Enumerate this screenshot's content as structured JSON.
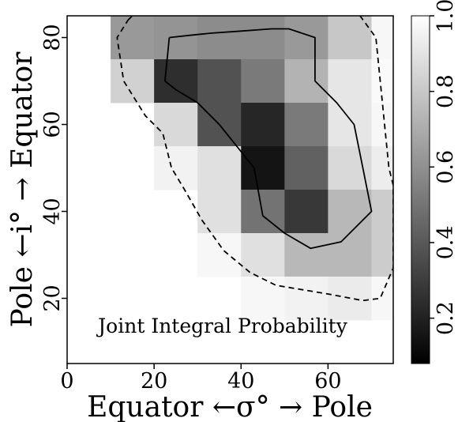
{
  "chart_data": {
    "type": "heatmap",
    "annotation": "Joint Integral Probability",
    "xlabel": "Equator ←σ° → Pole",
    "ylabel": "Pole ←i° → Equator",
    "xlim": [
      0,
      75
    ],
    "ylim": [
      5,
      85
    ],
    "x_ticks": [
      0,
      20,
      40,
      60
    ],
    "y_ticks": [
      20,
      40,
      60,
      80
    ],
    "colormap": "gray",
    "colorbar": {
      "range": [
        0.08,
        1.0
      ],
      "ticks": [
        0.2,
        0.4,
        0.6,
        0.8,
        1.0
      ],
      "tick_labels": [
        "0.2",
        "0.4",
        "0.6",
        "0.8",
        "1.0"
      ]
    },
    "cell_size": [
      10,
      10
    ],
    "cells": [
      {
        "x": 15,
        "y": 80,
        "v": 0.6
      },
      {
        "x": 25,
        "y": 80,
        "v": 0.58
      },
      {
        "x": 35,
        "y": 80,
        "v": 0.55
      },
      {
        "x": 45,
        "y": 80,
        "v": 0.55
      },
      {
        "x": 55,
        "y": 80,
        "v": 0.6
      },
      {
        "x": 65,
        "y": 80,
        "v": 0.78
      },
      {
        "x": 75,
        "y": 80,
        "v": 0.97
      },
      {
        "x": 15,
        "y": 70,
        "v": 0.82
      },
      {
        "x": 25,
        "y": 70,
        "v": 0.18
      },
      {
        "x": 35,
        "y": 70,
        "v": 0.32
      },
      {
        "x": 45,
        "y": 70,
        "v": 0.48
      },
      {
        "x": 55,
        "y": 70,
        "v": 0.7
      },
      {
        "x": 65,
        "y": 70,
        "v": 0.9
      },
      {
        "x": 75,
        "y": 70,
        "v": 0.98
      },
      {
        "x": 25,
        "y": 60,
        "v": 0.85
      },
      {
        "x": 35,
        "y": 60,
        "v": 0.32
      },
      {
        "x": 45,
        "y": 60,
        "v": 0.15
      },
      {
        "x": 55,
        "y": 60,
        "v": 0.48
      },
      {
        "x": 65,
        "y": 60,
        "v": 0.9
      },
      {
        "x": 75,
        "y": 60,
        "v": 0.97
      },
      {
        "x": 25,
        "y": 50,
        "v": 0.95
      },
      {
        "x": 35,
        "y": 50,
        "v": 0.88
      },
      {
        "x": 45,
        "y": 50,
        "v": 0.08
      },
      {
        "x": 55,
        "y": 50,
        "v": 0.38
      },
      {
        "x": 65,
        "y": 50,
        "v": 0.85
      },
      {
        "x": 75,
        "y": 50,
        "v": 0.93
      },
      {
        "x": 35,
        "y": 40,
        "v": 0.88
      },
      {
        "x": 45,
        "y": 40,
        "v": 0.45
      },
      {
        "x": 55,
        "y": 40,
        "v": 0.22
      },
      {
        "x": 65,
        "y": 40,
        "v": 0.72
      },
      {
        "x": 75,
        "y": 40,
        "v": 0.8
      },
      {
        "x": 35,
        "y": 30,
        "v": 0.97
      },
      {
        "x": 45,
        "y": 30,
        "v": 0.88
      },
      {
        "x": 55,
        "y": 30,
        "v": 0.72
      },
      {
        "x": 65,
        "y": 30,
        "v": 0.72
      },
      {
        "x": 75,
        "y": 30,
        "v": 0.8
      },
      {
        "x": 45,
        "y": 20,
        "v": 0.97
      },
      {
        "x": 55,
        "y": 20,
        "v": 0.95
      },
      {
        "x": 65,
        "y": 20,
        "v": 0.92
      },
      {
        "x": 75,
        "y": 20,
        "v": 0.97
      }
    ],
    "contours": [
      {
        "style": "solid",
        "points": [
          [
            23.5,
            80
          ],
          [
            28,
            80.5
          ],
          [
            33,
            81
          ],
          [
            40,
            81.5
          ],
          [
            47,
            82
          ],
          [
            51,
            82
          ],
          [
            57,
            80
          ],
          [
            57,
            70
          ],
          [
            62,
            65
          ],
          [
            66,
            60
          ],
          [
            68,
            50
          ],
          [
            70,
            40
          ],
          [
            63,
            33
          ],
          [
            56,
            31.5
          ],
          [
            50,
            35
          ],
          [
            45,
            39
          ],
          [
            43,
            50
          ],
          [
            39,
            55
          ],
          [
            35,
            60
          ],
          [
            30,
            65
          ],
          [
            25,
            68
          ],
          [
            22.5,
            70
          ],
          [
            23.5,
            80
          ]
        ]
      },
      {
        "style": "dashed",
        "points": [
          [
            14,
            84
          ],
          [
            16,
            86
          ],
          [
            47,
            86
          ],
          [
            66,
            86
          ],
          [
            67,
            85.5
          ],
          [
            71,
            80
          ],
          [
            72,
            70
          ],
          [
            73,
            60
          ],
          [
            74,
            50
          ],
          [
            75,
            46
          ],
          [
            75,
            27
          ],
          [
            72,
            20
          ],
          [
            68,
            19.5
          ],
          [
            60,
            21
          ],
          [
            48,
            23
          ],
          [
            42,
            26
          ],
          [
            36,
            31
          ],
          [
            31,
            38
          ],
          [
            27,
            45
          ],
          [
            24,
            50
          ],
          [
            22,
            58
          ],
          [
            18,
            62
          ],
          [
            13,
            70
          ],
          [
            11.5,
            80
          ],
          [
            14,
            84
          ]
        ]
      }
    ]
  }
}
